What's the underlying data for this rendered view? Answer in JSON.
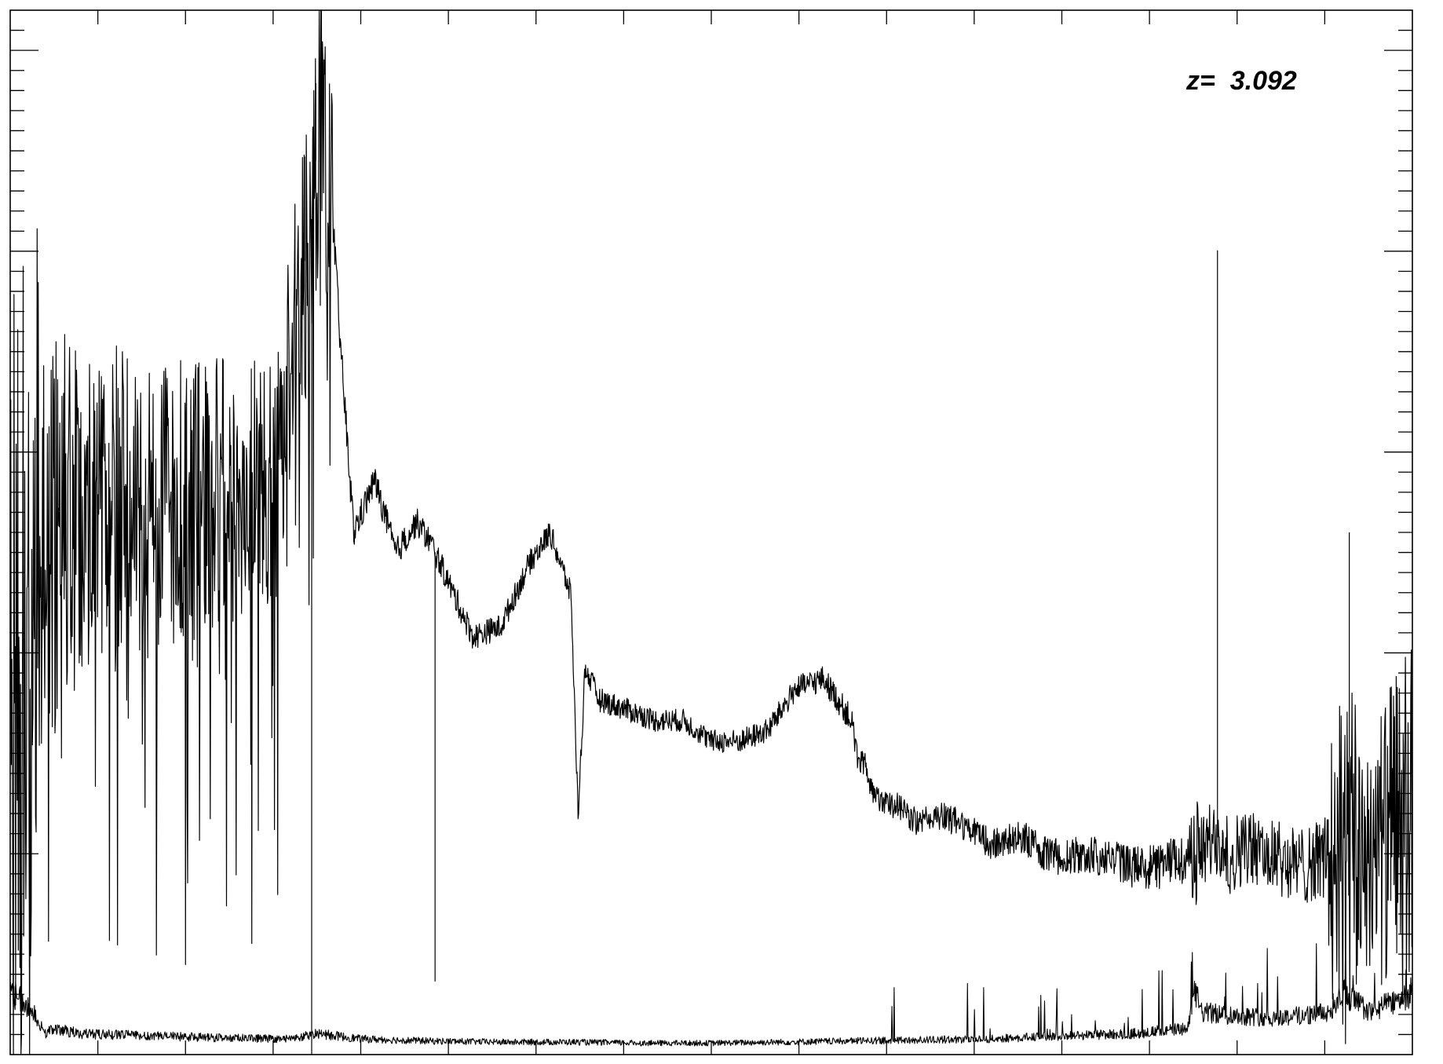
{
  "annotation": {
    "redshift_label": "z=  3.092"
  },
  "chart_data": {
    "type": "line",
    "title": "",
    "xlabel": "",
    "ylabel": "",
    "grid": false,
    "x_tick_labels": [],
    "y_tick_labels": [],
    "xlim": [
      0,
      1
    ],
    "ylim": [
      0,
      1
    ],
    "series": [
      {
        "role": "flux",
        "x": [
          0.0,
          0.012,
          0.02,
          0.03,
          0.05,
          0.07,
          0.09,
          0.11,
          0.13,
          0.15,
          0.17,
          0.19,
          0.205,
          0.215,
          0.222,
          0.23,
          0.236,
          0.245,
          0.26,
          0.275,
          0.29,
          0.3,
          0.31,
          0.33,
          0.35,
          0.37,
          0.385,
          0.4,
          0.405,
          0.41,
          0.42,
          0.44,
          0.46,
          0.48,
          0.5,
          0.52,
          0.54,
          0.56,
          0.58,
          0.6,
          0.605,
          0.61,
          0.615,
          0.63,
          0.65,
          0.66,
          0.68,
          0.7,
          0.72,
          0.74,
          0.76,
          0.78,
          0.8,
          0.82,
          0.84,
          0.855,
          0.86,
          0.87,
          0.88,
          0.9,
          0.92,
          0.94,
          0.95,
          0.96,
          0.97,
          0.98,
          0.99,
          1.0
        ],
        "y": [
          0.3,
          0.38,
          0.52,
          0.5,
          0.52,
          0.53,
          0.52,
          0.53,
          0.53,
          0.54,
          0.54,
          0.56,
          0.72,
          0.8,
          0.93,
          0.8,
          0.67,
          0.5,
          0.55,
          0.48,
          0.51,
          0.49,
          0.46,
          0.4,
          0.41,
          0.47,
          0.5,
          0.44,
          0.23,
          0.37,
          0.34,
          0.33,
          0.32,
          0.32,
          0.3,
          0.3,
          0.31,
          0.35,
          0.36,
          0.32,
          0.28,
          0.28,
          0.25,
          0.24,
          0.22,
          0.23,
          0.22,
          0.2,
          0.21,
          0.19,
          0.19,
          0.19,
          0.18,
          0.18,
          0.19,
          0.2,
          0.21,
          0.19,
          0.2,
          0.19,
          0.18,
          0.19,
          0.18,
          0.19,
          0.2,
          0.2,
          0.21,
          0.22
        ]
      },
      {
        "role": "noise",
        "x": [
          0.0,
          0.01,
          0.02,
          0.025,
          0.03,
          0.05,
          0.1,
          0.15,
          0.2,
          0.22,
          0.25,
          0.3,
          0.35,
          0.4,
          0.45,
          0.5,
          0.55,
          0.6,
          0.65,
          0.7,
          0.75,
          0.8,
          0.84,
          0.845,
          0.85,
          0.9,
          0.94,
          0.95,
          0.97,
          1.0
        ],
        "y": [
          0.06,
          0.05,
          0.035,
          0.02,
          0.025,
          0.02,
          0.018,
          0.016,
          0.015,
          0.02,
          0.015,
          0.013,
          0.012,
          0.012,
          0.011,
          0.011,
          0.012,
          0.013,
          0.014,
          0.015,
          0.018,
          0.02,
          0.025,
          0.06,
          0.04,
          0.035,
          0.04,
          0.06,
          0.04,
          0.06
        ]
      }
    ],
    "spikes": [
      {
        "x": 0.218,
        "y": 0.93
      },
      {
        "x": 0.21,
        "y": 0.86
      },
      {
        "x": 0.861,
        "y": 0.77
      },
      {
        "x": 0.303,
        "y": 0.07
      },
      {
        "x": 0.955,
        "y": 0.5
      },
      {
        "x": 0.035,
        "y": 0.52
      },
      {
        "x": 0.215,
        "y": -0.01
      }
    ]
  }
}
